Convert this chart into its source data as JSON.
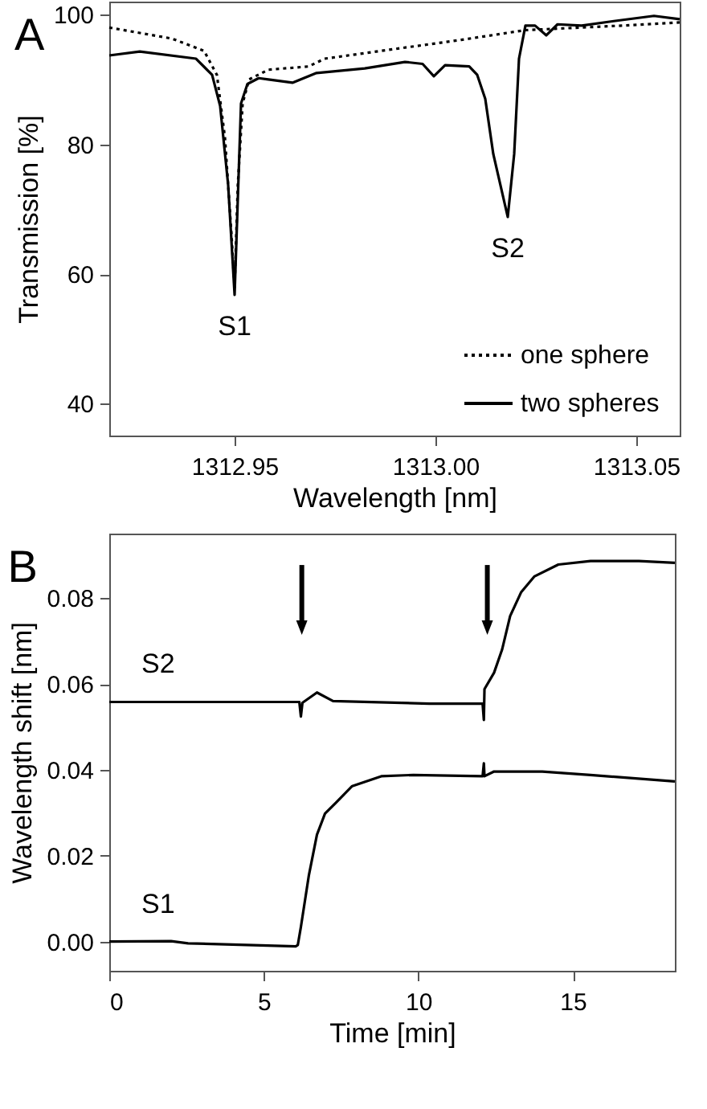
{
  "chart_data": [
    {
      "type": "line",
      "title": "A",
      "xlabel": "Wavelength [nm]",
      "ylabel": "Transmission [%]",
      "xlim": [
        1312.9188,
        1313.0608
      ],
      "ylim": [
        35.1,
        102
      ],
      "xticks": [
        1312.95,
        {
          "value": 1313,
          "label": "1313.00"
        },
        1313.05
      ],
      "yticks": [
        40,
        60,
        80,
        100
      ],
      "legend": "bottom right",
      "annotations": [
        {
          "text": "S1",
          "x": 1312.95,
          "y": 56.8
        },
        {
          "text": "S2",
          "x": 1313.018,
          "y": 68.8
        }
      ],
      "series": [
        {
          "name": "one sphere",
          "color": "#000000",
          "line_style": "dotted",
          "x": [
            1312.9188,
            1312.9344,
            1312.9424,
            1312.9456,
            1312.9476,
            1312.9492,
            1312.95,
            1312.9508,
            1312.952,
            1312.9536,
            1312.9584,
            1312.9684,
            1312.9724,
            1312.9864,
            1313.0064,
            1313.0224,
            1313.0464,
            1313.0608
          ],
          "values": [
            98,
            96.3,
            94.4,
            90.7,
            81,
            66.3,
            57.8,
            73.7,
            86.3,
            90,
            91.5,
            92,
            93.2,
            94.4,
            96.1,
            97.6,
            98.3,
            98.8
          ]
        },
        {
          "name": "two spheres",
          "color": "#000000",
          "line_style": "solid",
          "x": [
            1312.9188,
            1312.9264,
            1312.9404,
            1312.9444,
            1312.9464,
            1312.9484,
            1312.95,
            1312.9516,
            1312.9532,
            1312.956,
            1312.9584,
            1312.9644,
            1312.9704,
            1312.9824,
            1312.9924,
            1312.9968,
            1312.9996,
            1313.0024,
            1313.0084,
            1313.0104,
            1313.0124,
            1313.0144,
            1313.018,
            1313.0196,
            1313.0208,
            1313.0224,
            1313.0248,
            1313.0276,
            1313.0304,
            1313.0364,
            1313.0444,
            1313.0544,
            1313.0608
          ],
          "values": [
            93.7,
            94.3,
            93.2,
            90.7,
            85.9,
            73.7,
            56.8,
            86.3,
            89.3,
            90.2,
            90,
            89.5,
            91,
            91.7,
            92.7,
            92.4,
            90.5,
            92.2,
            92,
            90.7,
            87,
            78.5,
            68.8,
            78.5,
            93.2,
            98.3,
            98.3,
            96.8,
            98.5,
            98.3,
            99,
            99.8,
            99.3
          ]
        }
      ]
    },
    {
      "type": "line",
      "title": "B",
      "xlabel": "Time [min]",
      "ylabel": "Wavelength shift [nm]",
      "xlim": [
        0,
        18.3
      ],
      "ylim": [
        -0.0068,
        0.095
      ],
      "xticks": [
        0,
        5,
        10,
        15
      ],
      "yticks": [
        {
          "value": 0,
          "label": "0.00"
        },
        0.02,
        0.04,
        0.06,
        0.08
      ],
      "series": [
        {
          "name": "S2",
          "color": "#000000",
          "line_style": "solid",
          "x": [
            0,
            3,
            6.15,
            6.2,
            6.25,
            6.72,
            7.24,
            10.36,
            12.08,
            12.12,
            12.14,
            12.45,
            12.71,
            12.97,
            13.33,
            13.75,
            14.53,
            15.57,
            17.14,
            18.3
          ],
          "values": [
            0.0558,
            0.0558,
            0.0558,
            0.0524,
            0.0556,
            0.058,
            0.056,
            0.0554,
            0.0554,
            0.0516,
            0.0588,
            0.0626,
            0.068,
            0.0758,
            0.0814,
            0.085,
            0.0878,
            0.0886,
            0.0886,
            0.0882
          ]
        },
        {
          "name": "S1",
          "color": "#000000",
          "line_style": "solid",
          "x": [
            0,
            2,
            2.55,
            6.04,
            6.1,
            6.2,
            6.46,
            6.72,
            6.98,
            7.34,
            7.86,
            8.8,
            9.84,
            12.08,
            12.12,
            12.14,
            12.45,
            14.01,
            15.57,
            18.3
          ],
          "values": [
            0,
            0.0001,
            -0.0004,
            -0.0011,
            -0.0008,
            0.0034,
            0.0155,
            0.0249,
            0.0298,
            0.0324,
            0.0362,
            0.0385,
            0.0388,
            0.0385,
            0.0415,
            0.0385,
            0.0396,
            0.0396,
            0.0388,
            0.0373
          ]
        }
      ]
    }
  ]
}
